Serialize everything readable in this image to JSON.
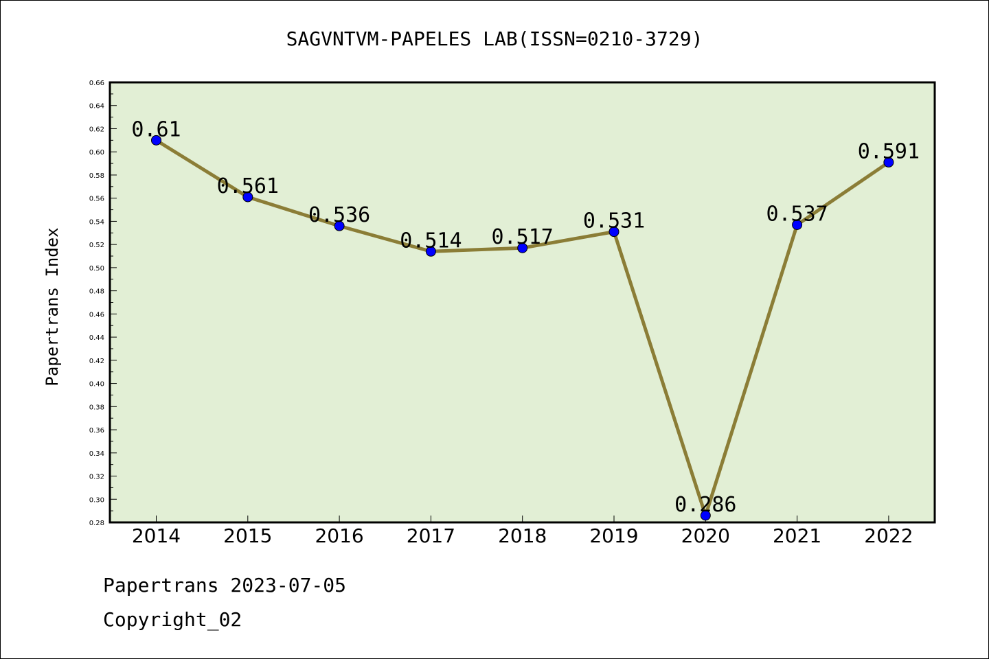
{
  "chart_data": {
    "type": "line",
    "title": "SAGVNTVM-PAPELES LAB(ISSN=0210-3729)",
    "xlabel": "",
    "ylabel": "Papertrans Index",
    "categories": [
      "2014",
      "2015",
      "2016",
      "2017",
      "2018",
      "2019",
      "2020",
      "2021",
      "2022"
    ],
    "values": [
      0.61,
      0.561,
      0.536,
      0.514,
      0.517,
      0.531,
      0.286,
      0.537,
      0.591
    ],
    "data_labels": [
      "0.61",
      "0.561",
      "0.536",
      "0.514",
      "0.517",
      "0.531",
      "0.286",
      "0.537",
      "0.591"
    ],
    "ylim": [
      0.28,
      0.66
    ],
    "yticks": [
      "0.28",
      "0.30",
      "0.32",
      "0.34",
      "0.36",
      "0.38",
      "0.40",
      "0.42",
      "0.44",
      "0.46",
      "0.48",
      "0.50",
      "0.52",
      "0.54",
      "0.56",
      "0.58",
      "0.60",
      "0.62",
      "0.64",
      "0.66"
    ],
    "grid": false,
    "colors": {
      "line": "#8b7d36",
      "marker": "#0000ff",
      "plot_background": "#e2efd5"
    }
  },
  "footer": {
    "line1": "Papertrans 2023-07-05",
    "line2": "Copyright_02"
  }
}
